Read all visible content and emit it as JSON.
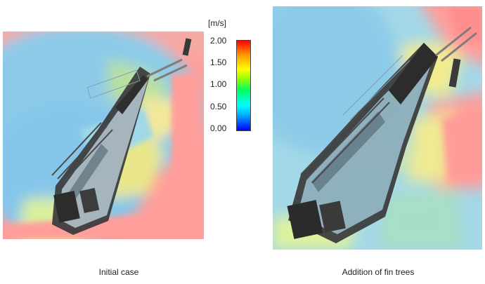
{
  "legend": {
    "unit": "[m/s]",
    "ticks": [
      "2.00",
      "1.50",
      "1.00",
      "0.50",
      "0.00"
    ]
  },
  "panels": [
    {
      "caption": "Initial case"
    },
    {
      "caption": "Addition of fin trees"
    }
  ]
}
